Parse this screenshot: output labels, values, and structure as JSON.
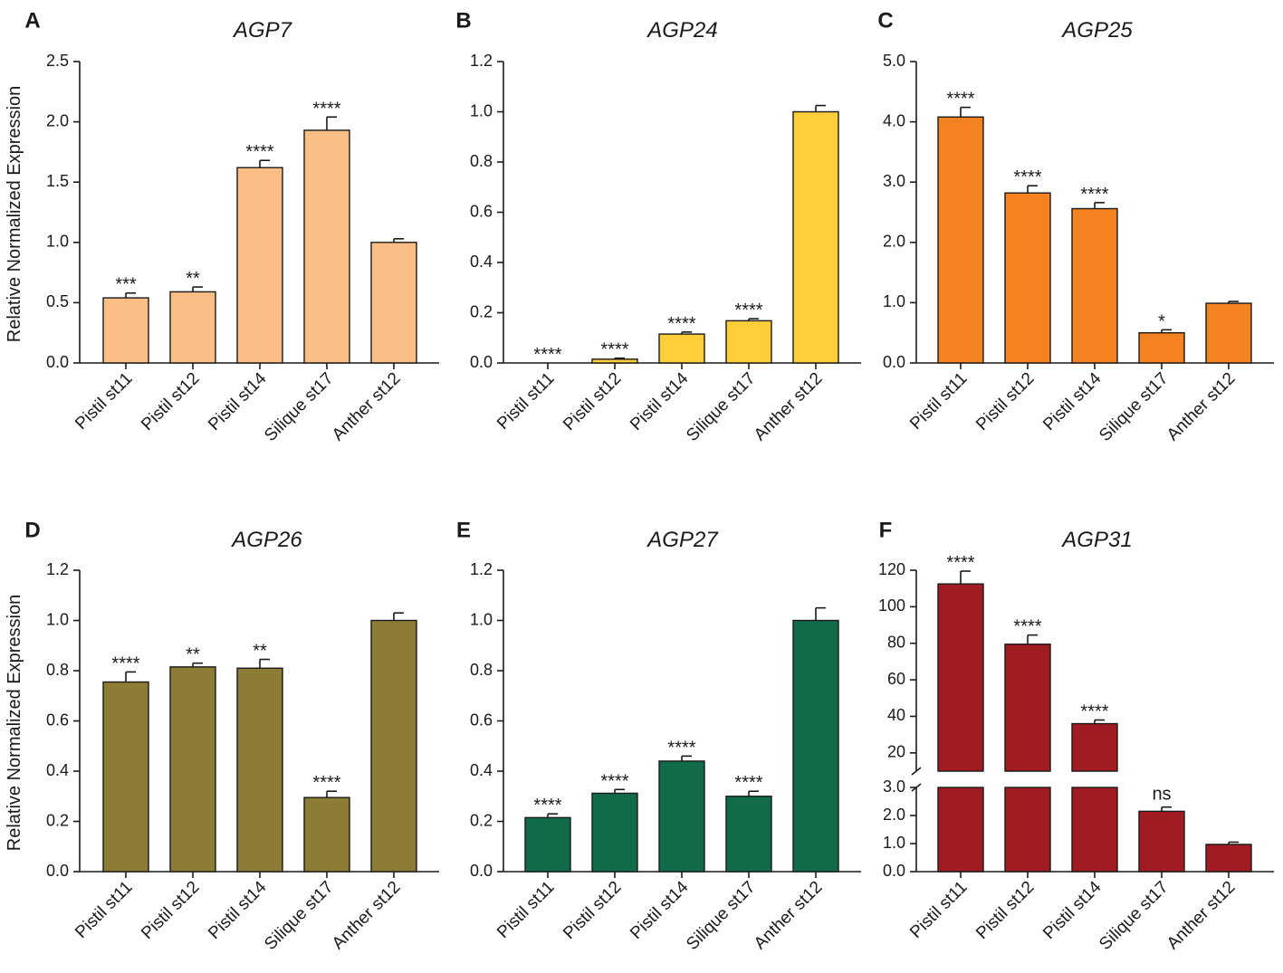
{
  "figure": {
    "ylabel": "Relative Normalized Expression",
    "categories": [
      "Pistil st11",
      "Pistil st12",
      "Pistil st14",
      "Silique st17",
      "Anther st12"
    ]
  },
  "chart_data": [
    {
      "type": "bar",
      "panel": "A",
      "title": "AGP7",
      "color": "#FBBF85",
      "categories": [
        "Pistil st11",
        "Pistil st12",
        "Pistil st14",
        "Silique st17",
        "Anther st12"
      ],
      "values": [
        0.54,
        0.59,
        1.62,
        1.93,
        1.0
      ],
      "errors": [
        0.04,
        0.04,
        0.06,
        0.11,
        0.03
      ],
      "significance": [
        "***",
        "**",
        "****",
        "****",
        ""
      ],
      "ylabel": "Relative Normalized Expression",
      "ylim": [
        0,
        2.5
      ],
      "yticks": [
        0,
        0.5,
        1.0,
        1.5,
        2.0,
        2.5
      ],
      "ytick_labels": [
        "0.0",
        "0.5",
        "1.0",
        "1.5",
        "2.0",
        "2.5"
      ]
    },
    {
      "type": "bar",
      "panel": "B",
      "title": "AGP24",
      "color": "#FDCD3A",
      "categories": [
        "Pistil st11",
        "Pistil st12",
        "Pistil st14",
        "Silique st17",
        "Anther st12"
      ],
      "values": [
        0.0,
        0.015,
        0.115,
        0.168,
        1.0
      ],
      "errors": [
        0.0,
        0.004,
        0.008,
        0.008,
        0.025
      ],
      "significance": [
        "****",
        "****",
        "****",
        "****",
        ""
      ],
      "ylabel": "",
      "ylim": [
        0,
        1.2
      ],
      "yticks": [
        0,
        0.2,
        0.4,
        0.6,
        0.8,
        1.0,
        1.2
      ],
      "ytick_labels": [
        "0.0",
        "0.2",
        "0.4",
        "0.6",
        "0.8",
        "1.0",
        "1.2"
      ]
    },
    {
      "type": "bar",
      "panel": "C",
      "title": "AGP25",
      "color": "#F58220",
      "categories": [
        "Pistil st11",
        "Pistil st12",
        "Pistil st14",
        "Silique st17",
        "Anther st12"
      ],
      "values": [
        4.08,
        2.82,
        2.56,
        0.5,
        0.99
      ],
      "errors": [
        0.16,
        0.12,
        0.1,
        0.05,
        0.03
      ],
      "significance": [
        "****",
        "****",
        "****",
        "*",
        ""
      ],
      "ylabel": "",
      "ylim": [
        0,
        5.0
      ],
      "yticks": [
        0,
        1.0,
        2.0,
        3.0,
        4.0,
        5.0
      ],
      "ytick_labels": [
        "0.0",
        "1.0",
        "2.0",
        "3.0",
        "4.0",
        "5.0"
      ]
    },
    {
      "type": "bar",
      "panel": "D",
      "title": "AGP26",
      "color": "#8C7C36",
      "categories": [
        "Pistil st11",
        "Pistil st12",
        "Pistil st14",
        "Silique st17",
        "Anther st12"
      ],
      "values": [
        0.755,
        0.815,
        0.81,
        0.295,
        1.0
      ],
      "errors": [
        0.04,
        0.015,
        0.035,
        0.025,
        0.03
      ],
      "significance": [
        "****",
        "**",
        "**",
        "****",
        ""
      ],
      "ylabel": "Relative Normalized Expression",
      "ylim": [
        0,
        1.2
      ],
      "yticks": [
        0,
        0.2,
        0.4,
        0.6,
        0.8,
        1.0,
        1.2
      ],
      "ytick_labels": [
        "0.0",
        "0.2",
        "0.4",
        "0.6",
        "0.8",
        "1.0",
        "1.2"
      ]
    },
    {
      "type": "bar",
      "panel": "E",
      "title": "AGP27",
      "color": "#116B49",
      "categories": [
        "Pistil st11",
        "Pistil st12",
        "Pistil st14",
        "Silique st17",
        "Anther st12"
      ],
      "values": [
        0.215,
        0.312,
        0.44,
        0.3,
        1.0
      ],
      "errors": [
        0.015,
        0.015,
        0.02,
        0.02,
        0.05
      ],
      "significance": [
        "****",
        "****",
        "****",
        "****",
        ""
      ],
      "ylabel": "",
      "ylim": [
        0,
        1.2
      ],
      "yticks": [
        0,
        0.2,
        0.4,
        0.6,
        0.8,
        1.0,
        1.2
      ],
      "ytick_labels": [
        "0.0",
        "0.2",
        "0.4",
        "0.6",
        "0.8",
        "1.0",
        "1.2"
      ]
    },
    {
      "type": "bar",
      "panel": "F",
      "title": "AGP31",
      "color": "#A01B22",
      "categories": [
        "Pistil st11",
        "Pistil st12",
        "Pistil st14",
        "Silique st17",
        "Anther st12"
      ],
      "values": [
        112.5,
        79.5,
        36.0,
        2.15,
        0.97
      ],
      "errors": [
        7.0,
        5.0,
        2.0,
        0.15,
        0.08
      ],
      "significance": [
        "****",
        "****",
        "****",
        "ns",
        ""
      ],
      "ylabel": "",
      "broken_axis": true,
      "lower_range": [
        0,
        3.0
      ],
      "upper_range": [
        10,
        120
      ],
      "yticks_lower": [
        0,
        1.0,
        2.0,
        3.0
      ],
      "ytick_labels_lower": [
        "0.0",
        "1.0",
        "2.0",
        "3.0"
      ],
      "yticks_upper": [
        20,
        40,
        60,
        80,
        100,
        120
      ],
      "ytick_labels_upper": [
        "20",
        "40",
        "60",
        "80",
        "100",
        "120"
      ]
    }
  ]
}
